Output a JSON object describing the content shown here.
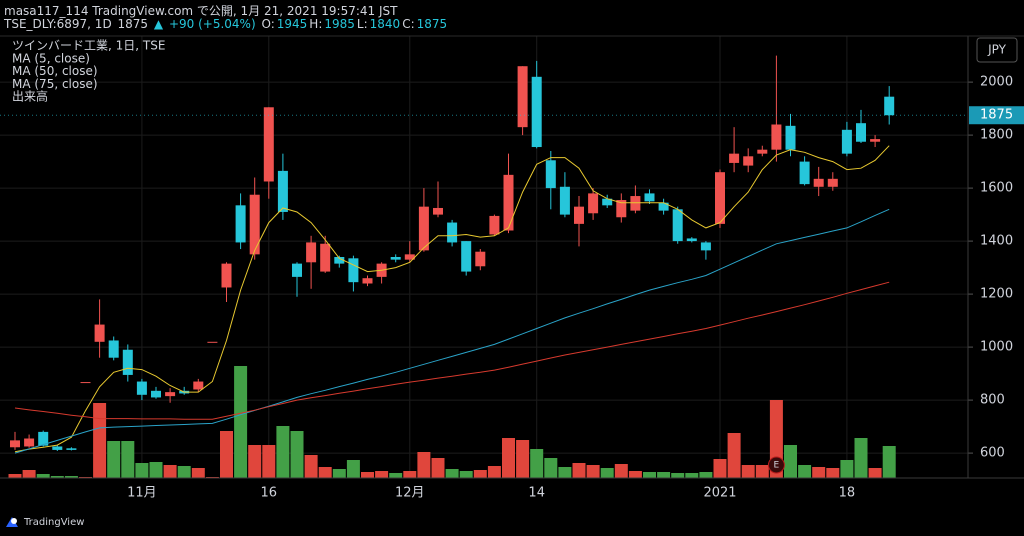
{
  "header": {
    "line1": "masa117_114 TradingView.com で公開, 1月 21, 2021 19:57:41 JST",
    "symbol": "TSE_DLY:6897, 1D",
    "last": "1875",
    "arrow": "▲",
    "change": "+90 (+5.04%)",
    "ohlc": [
      {
        "label": "O:",
        "value": "1945"
      },
      {
        "label": "H:",
        "value": "1985"
      },
      {
        "label": "L:",
        "value": "1840"
      },
      {
        "label": "C:",
        "value": "1875"
      }
    ]
  },
  "footer": {
    "brand": "TradingView"
  },
  "chart_data": {
    "type": "candlestick",
    "title": "ツインバード工業, 1日, TSE",
    "currency": "JPY",
    "volume_name": "出来高",
    "event_marker": "E",
    "categories": [
      null,
      null,
      null,
      null,
      null,
      null,
      null,
      null,
      null,
      "11月",
      null,
      null,
      null,
      null,
      null,
      null,
      null,
      null,
      "16",
      null,
      null,
      null,
      null,
      null,
      null,
      null,
      null,
      null,
      "12月",
      null,
      null,
      null,
      null,
      null,
      null,
      null,
      null,
      "14",
      null,
      null,
      null,
      null,
      null,
      null,
      null,
      null,
      null,
      null,
      null,
      null,
      "2021",
      null,
      null,
      null,
      null,
      null,
      null,
      null,
      null,
      "18",
      null,
      null,
      null
    ],
    "open": [
      622,
      625,
      680,
      625,
      618,
      868,
      1020,
      1025,
      990,
      870,
      835,
      815,
      835,
      840,
      1020,
      1225,
      1535,
      1350,
      1625,
      1665,
      1315,
      1320,
      1285,
      1340,
      1335,
      1240,
      1265,
      1340,
      1330,
      1365,
      1500,
      1470,
      1400,
      1305,
      1425,
      1440,
      1830,
      2020,
      1705,
      1605,
      1465,
      1505,
      1560,
      1490,
      1515,
      1580,
      1545,
      1520,
      1410,
      1395,
      1465,
      1695,
      1685,
      1730,
      1745,
      1835,
      1700,
      1605,
      1605,
      1820,
      1845,
      1775,
      1945
    ],
    "high": [
      680,
      670,
      685,
      630,
      622,
      868,
      1180,
      1040,
      1010,
      880,
      850,
      845,
      850,
      880,
      1020,
      1320,
      1580,
      1640,
      1905,
      1730,
      1320,
      1420,
      1420,
      1345,
      1345,
      1270,
      1320,
      1350,
      1400,
      1600,
      1625,
      1480,
      1400,
      1370,
      1500,
      1730,
      2060,
      2080,
      1740,
      1660,
      1570,
      1600,
      1575,
      1580,
      1610,
      1595,
      1560,
      1530,
      1415,
      1400,
      1670,
      1830,
      1750,
      1760,
      2100,
      1880,
      1720,
      1680,
      1660,
      1850,
      1895,
      1800,
      1985
    ],
    "low": [
      612,
      620,
      625,
      608,
      610,
      868,
      960,
      950,
      870,
      800,
      805,
      790,
      820,
      830,
      1020,
      1170,
      1370,
      1330,
      1560,
      1480,
      1190,
      1220,
      1280,
      1300,
      1210,
      1230,
      1240,
      1320,
      1320,
      1360,
      1490,
      1380,
      1270,
      1290,
      1420,
      1430,
      1800,
      1750,
      1520,
      1490,
      1380,
      1480,
      1525,
      1470,
      1505,
      1540,
      1500,
      1390,
      1395,
      1330,
      1450,
      1660,
      1660,
      1720,
      1700,
      1720,
      1610,
      1570,
      1590,
      1720,
      1770,
      1755,
      1840
    ],
    "close": [
      648,
      655,
      628,
      612,
      612,
      868,
      1085,
      960,
      895,
      820,
      810,
      830,
      825,
      870,
      1020,
      1315,
      1395,
      1575,
      1905,
      1510,
      1265,
      1395,
      1390,
      1315,
      1245,
      1260,
      1315,
      1330,
      1350,
      1530,
      1525,
      1395,
      1285,
      1360,
      1495,
      1650,
      2060,
      1755,
      1600,
      1500,
      1530,
      1580,
      1535,
      1555,
      1570,
      1550,
      1515,
      1400,
      1400,
      1365,
      1660,
      1730,
      1720,
      1745,
      1840,
      1745,
      1615,
      1635,
      1635,
      1730,
      1775,
      1785,
      1875
    ],
    "volume": [
      4,
      8,
      4,
      2,
      2,
      1,
      75,
      37,
      37,
      15,
      16,
      13,
      12,
      10,
      1,
      47,
      112,
      33,
      33,
      52,
      47,
      23,
      11,
      9,
      18,
      6,
      7,
      5,
      7,
      26,
      20,
      9,
      7,
      8,
      12,
      40,
      38,
      29,
      20,
      11,
      15,
      13,
      10,
      14,
      7,
      6,
      6,
      5,
      5,
      6,
      19,
      45,
      13,
      13,
      78,
      33,
      13,
      11,
      10,
      18,
      40,
      10,
      32
    ],
    "up_color": "#f05350",
    "down_color": "#26c6da",
    "volume_up_color": "#e0463c",
    "volume_down_color": "#43a047",
    "series": [
      {
        "name": "MA (5, close)",
        "color": "#e8c930",
        "values": [
          605,
          615,
          622,
          630,
          660,
          760,
          850,
          905,
          920,
          915,
          890,
          855,
          830,
          830,
          870,
          1025,
          1215,
          1365,
          1470,
          1525,
          1510,
          1470,
          1405,
          1335,
          1310,
          1285,
          1290,
          1300,
          1320,
          1375,
          1420,
          1420,
          1425,
          1415,
          1420,
          1450,
          1585,
          1690,
          1715,
          1715,
          1675,
          1590,
          1560,
          1545,
          1545,
          1545,
          1545,
          1520,
          1480,
          1450,
          1470,
          1530,
          1585,
          1670,
          1725,
          1745,
          1735,
          1715,
          1700,
          1670,
          1675,
          1705,
          1760
        ]
      },
      {
        "name": "MA (50, close)",
        "color": "#2aa3c8",
        "values": [
          600,
          616,
          632,
          648,
          664,
          680,
          695,
          698,
          700,
          702,
          704,
          706,
          708,
          710,
          712,
          728,
          745,
          761,
          777,
          793,
          810,
          824,
          837,
          851,
          864,
          878,
          891,
          905,
          920,
          935,
          950,
          965,
          980,
          995,
          1010,
          1030,
          1050,
          1070,
          1090,
          1110,
          1128,
          1145,
          1163,
          1180,
          1198,
          1215,
          1229,
          1243,
          1256,
          1270,
          1294,
          1318,
          1342,
          1366,
          1390,
          1402,
          1414,
          1426,
          1438,
          1450,
          1473,
          1497,
          1520
        ]
      },
      {
        "name": "MA (75, close)",
        "color": "#d63a2e",
        "values": [
          770,
          763,
          757,
          750,
          743,
          737,
          730,
          730,
          730,
          729,
          729,
          729,
          728,
          728,
          728,
          739,
          750,
          762,
          775,
          787,
          800,
          809,
          817,
          826,
          834,
          843,
          851,
          860,
          868,
          875,
          883,
          890,
          898,
          905,
          913,
          924,
          936,
          947,
          959,
          970,
          980,
          990,
          1000,
          1010,
          1020,
          1030,
          1040,
          1050,
          1060,
          1070,
          1083,
          1096,
          1109,
          1121,
          1134,
          1147,
          1160,
          1174,
          1188,
          1203,
          1217,
          1231,
          1245
        ]
      }
    ],
    "ylim": [
      506,
      2174
    ],
    "yticks": [
      600,
      800,
      1000,
      1200,
      1400,
      1600,
      1800,
      2000
    ],
    "grid": true,
    "last_price": 1875
  }
}
